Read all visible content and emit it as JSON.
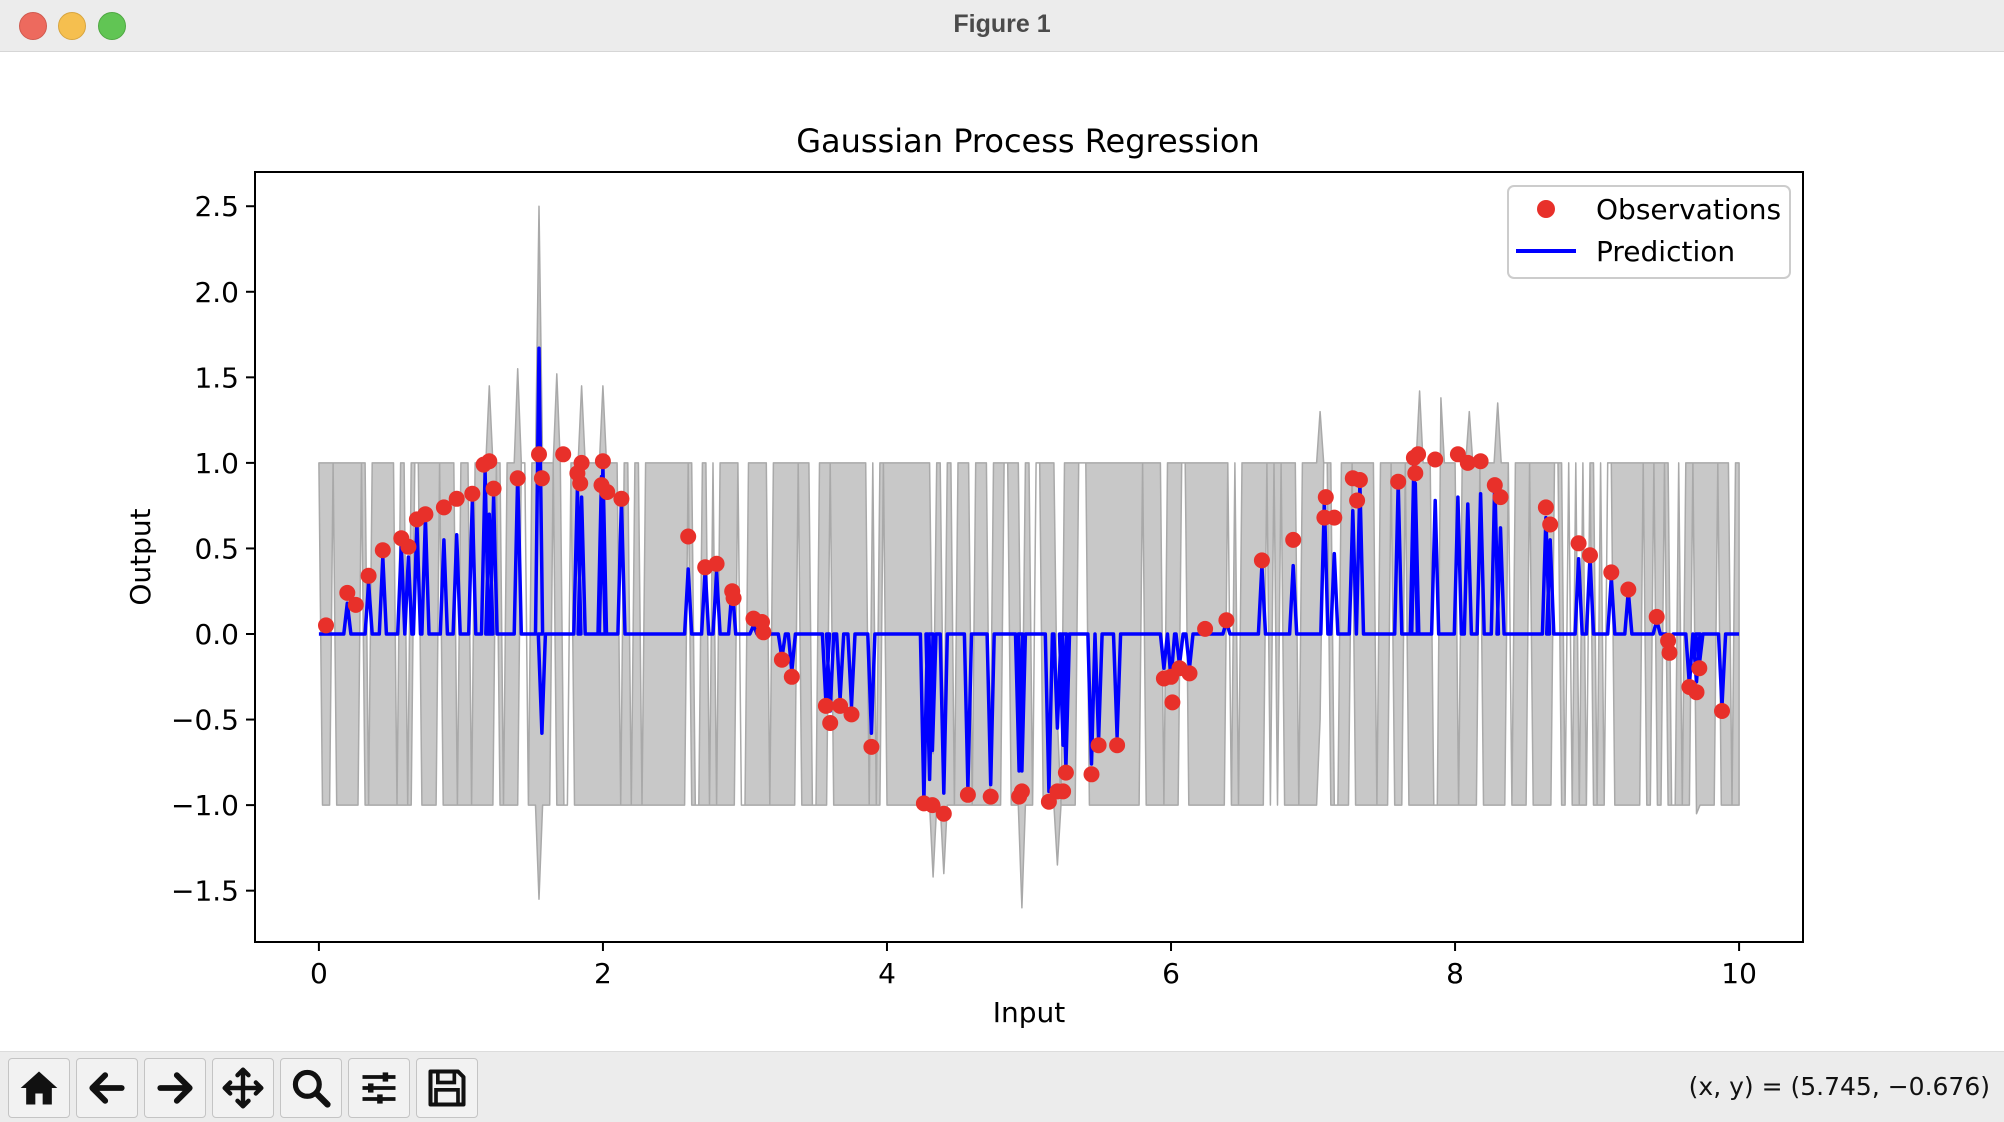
{
  "window": {
    "title": "Figure 1"
  },
  "toolbar": {
    "buttons": [
      {
        "name": "home-button",
        "icon": "home-icon"
      },
      {
        "name": "back-button",
        "icon": "arrow-left-icon"
      },
      {
        "name": "forward-button",
        "icon": "arrow-right-icon"
      },
      {
        "name": "pan-button",
        "icon": "move-icon"
      },
      {
        "name": "zoom-button",
        "icon": "magnifier-icon"
      },
      {
        "name": "configure-subplots-button",
        "icon": "sliders-icon"
      },
      {
        "name": "save-button",
        "icon": "floppy-disk-icon"
      }
    ],
    "coords": "(x, y) = (5.745, −0.676)"
  },
  "chart_data": {
    "type": "line",
    "title": "Gaussian Process Regression",
    "xlabel": "Input",
    "ylabel": "Output",
    "xlim": [
      -0.45,
      10.45
    ],
    "ylim": [
      -1.8,
      2.7
    ],
    "xticks": [
      0,
      2,
      4,
      6,
      8,
      10
    ],
    "xtick_labels": [
      "0",
      "2",
      "4",
      "6",
      "8",
      "10"
    ],
    "yticks": [
      -1.5,
      -1.0,
      -0.5,
      0.0,
      0.5,
      1.0,
      1.5,
      2.0,
      2.5
    ],
    "ytick_labels": [
      "−1.5",
      "−1.0",
      "−0.5",
      "0.0",
      "0.5",
      "1.0",
      "1.5",
      "2.0",
      "2.5"
    ],
    "grid": false,
    "legend": {
      "placement": "top-right",
      "entries": [
        "Observations",
        "Prediction"
      ]
    },
    "colors": {
      "observations": "#e8302a",
      "prediction": "#0000ff",
      "band": "#c8c8c8",
      "band_edge": "#a9a9a9"
    },
    "observations": {
      "x": [
        0.05,
        0.2,
        0.26,
        0.35,
        0.45,
        0.58,
        0.63,
        0.69,
        0.75,
        0.88,
        0.97,
        1.08,
        1.16,
        1.2,
        1.23,
        1.4,
        1.55,
        1.57,
        1.72,
        1.82,
        1.84,
        1.85,
        1.99,
        2.0,
        2.03,
        2.13,
        2.6,
        2.72,
        2.8,
        2.91,
        2.92,
        3.06,
        3.12,
        3.13,
        3.26,
        3.33,
        3.57,
        3.6,
        3.67,
        3.75,
        3.89,
        4.26,
        4.32,
        4.4,
        4.57,
        4.73,
        4.93,
        4.95,
        5.14,
        5.2,
        5.24,
        5.26,
        5.44,
        5.49,
        5.62,
        5.95,
        6.0,
        6.01,
        6.06,
        6.13,
        6.24,
        6.39,
        6.64,
        6.86,
        7.08,
        7.09,
        7.15,
        7.28,
        7.31,
        7.33,
        7.6,
        7.71,
        7.72,
        7.74,
        7.86,
        8.02,
        8.09,
        8.18,
        8.28,
        8.32,
        8.64,
        8.67,
        8.87,
        8.95,
        9.1,
        9.22,
        9.42,
        9.5,
        9.51,
        9.65,
        9.7,
        9.72,
        9.88
      ],
      "y": [
        0.05,
        0.24,
        0.17,
        0.34,
        0.49,
        0.56,
        0.51,
        0.67,
        0.7,
        0.74,
        0.79,
        0.82,
        0.99,
        1.01,
        0.85,
        0.91,
        1.05,
        0.91,
        1.05,
        0.94,
        0.88,
        1.0,
        0.87,
        1.01,
        0.83,
        0.79,
        0.57,
        0.39,
        0.41,
        0.25,
        0.21,
        0.09,
        0.07,
        0.01,
        -0.15,
        -0.25,
        -0.42,
        -0.52,
        -0.42,
        -0.47,
        -0.66,
        -0.99,
        -1.0,
        -1.05,
        -0.94,
        -0.95,
        -0.95,
        -0.92,
        -0.98,
        -0.92,
        -0.92,
        -0.81,
        -0.82,
        -0.65,
        -0.65,
        -0.26,
        -0.25,
        -0.4,
        -0.2,
        -0.23,
        0.03,
        0.08,
        0.43,
        0.55,
        0.68,
        0.8,
        0.68,
        0.91,
        0.78,
        0.9,
        0.89,
        1.03,
        0.94,
        1.05,
        1.02,
        1.05,
        1.0,
        1.01,
        0.87,
        0.8,
        0.74,
        0.64,
        0.53,
        0.46,
        0.36,
        0.26,
        0.1,
        -0.04,
        -0.11,
        -0.31,
        -0.34,
        -0.2,
        -0.45
      ]
    },
    "prediction": {
      "baseline": 0.0,
      "spikes": [
        {
          "x": 0.2,
          "y": 0.18
        },
        {
          "x": 0.35,
          "y": 0.3
        },
        {
          "x": 0.45,
          "y": 0.45
        },
        {
          "x": 0.58,
          "y": 0.52
        },
        {
          "x": 0.63,
          "y": 0.45
        },
        {
          "x": 0.69,
          "y": 0.65
        },
        {
          "x": 0.75,
          "y": 0.68
        },
        {
          "x": 0.88,
          "y": 0.55
        },
        {
          "x": 0.97,
          "y": 0.58
        },
        {
          "x": 1.08,
          "y": 0.78
        },
        {
          "x": 1.17,
          "y": 0.95
        },
        {
          "x": 1.2,
          "y": 0.7
        },
        {
          "x": 1.23,
          "y": 0.8
        },
        {
          "x": 1.4,
          "y": 0.93
        },
        {
          "x": 1.55,
          "y": 1.67
        },
        {
          "x": 1.57,
          "y": -0.58
        },
        {
          "x": 1.82,
          "y": 0.85
        },
        {
          "x": 1.85,
          "y": 0.8
        },
        {
          "x": 1.99,
          "y": 0.92
        },
        {
          "x": 2.0,
          "y": 0.98
        },
        {
          "x": 2.13,
          "y": 0.78
        },
        {
          "x": 2.6,
          "y": 0.38
        },
        {
          "x": 2.72,
          "y": 0.38
        },
        {
          "x": 2.8,
          "y": 0.36
        },
        {
          "x": 2.91,
          "y": 0.28
        },
        {
          "x": 3.06,
          "y": 0.05
        },
        {
          "x": 3.12,
          "y": 0.05
        },
        {
          "x": 3.26,
          "y": -0.14
        },
        {
          "x": 3.33,
          "y": -0.22
        },
        {
          "x": 3.57,
          "y": -0.4
        },
        {
          "x": 3.6,
          "y": -0.45
        },
        {
          "x": 3.67,
          "y": -0.38
        },
        {
          "x": 3.75,
          "y": -0.42
        },
        {
          "x": 3.89,
          "y": -0.58
        },
        {
          "x": 4.26,
          "y": -0.97
        },
        {
          "x": 4.3,
          "y": -0.85
        },
        {
          "x": 4.32,
          "y": -0.68
        },
        {
          "x": 4.4,
          "y": -0.93
        },
        {
          "x": 4.57,
          "y": -0.9
        },
        {
          "x": 4.73,
          "y": -0.88
        },
        {
          "x": 4.93,
          "y": -0.8
        },
        {
          "x": 4.95,
          "y": -0.8
        },
        {
          "x": 5.14,
          "y": -0.92
        },
        {
          "x": 5.2,
          "y": -0.55
        },
        {
          "x": 5.24,
          "y": -0.65
        },
        {
          "x": 5.26,
          "y": -0.78
        },
        {
          "x": 5.44,
          "y": -0.76
        },
        {
          "x": 5.49,
          "y": -0.62
        },
        {
          "x": 5.62,
          "y": -0.6
        },
        {
          "x": 5.95,
          "y": -0.2
        },
        {
          "x": 6.0,
          "y": -0.27
        },
        {
          "x": 6.06,
          "y": -0.18
        },
        {
          "x": 6.13,
          "y": -0.2
        },
        {
          "x": 6.39,
          "y": 0.07
        },
        {
          "x": 6.64,
          "y": 0.4
        },
        {
          "x": 6.86,
          "y": 0.4
        },
        {
          "x": 7.08,
          "y": 0.78
        },
        {
          "x": 7.15,
          "y": 0.47
        },
        {
          "x": 7.28,
          "y": 0.72
        },
        {
          "x": 7.33,
          "y": 0.88
        },
        {
          "x": 7.6,
          "y": 0.88
        },
        {
          "x": 7.71,
          "y": 1.0
        },
        {
          "x": 7.72,
          "y": 0.88
        },
        {
          "x": 7.86,
          "y": 0.78
        },
        {
          "x": 8.02,
          "y": 0.8
        },
        {
          "x": 8.09,
          "y": 0.76
        },
        {
          "x": 8.18,
          "y": 0.82
        },
        {
          "x": 8.28,
          "y": 0.9
        },
        {
          "x": 8.32,
          "y": 0.62
        },
        {
          "x": 8.64,
          "y": 0.68
        },
        {
          "x": 8.67,
          "y": 0.55
        },
        {
          "x": 8.87,
          "y": 0.44
        },
        {
          "x": 8.95,
          "y": 0.45
        },
        {
          "x": 9.1,
          "y": 0.33
        },
        {
          "x": 9.22,
          "y": 0.25
        },
        {
          "x": 9.42,
          "y": 0.08
        },
        {
          "x": 9.51,
          "y": -0.08
        },
        {
          "x": 9.65,
          "y": -0.3
        },
        {
          "x": 9.7,
          "y": -0.28
        },
        {
          "x": 9.72,
          "y": -0.18
        },
        {
          "x": 9.88,
          "y": -0.42
        }
      ]
    },
    "uncertainty": {
      "bounds": [
        -1.0,
        1.0
      ],
      "range_x": [
        0.0,
        10.0
      ],
      "peaks": [
        {
          "x": 1.55,
          "upper": 2.5,
          "lower": -1.55
        },
        {
          "x": 1.2,
          "upper": 1.45,
          "lower": -0.6
        },
        {
          "x": 1.4,
          "upper": 1.55,
          "lower": -0.7
        },
        {
          "x": 1.68,
          "upper": 1.52,
          "lower": -0.9
        },
        {
          "x": 1.85,
          "upper": 1.45,
          "lower": -0.7
        },
        {
          "x": 2.0,
          "upper": 1.45,
          "lower": -0.75
        },
        {
          "x": 4.32,
          "upper": -0.7,
          "lower": -1.42
        },
        {
          "x": 4.4,
          "upper": -0.75,
          "lower": -1.4
        },
        {
          "x": 4.95,
          "upper": -0.8,
          "lower": -1.6
        },
        {
          "x": 5.2,
          "upper": -0.5,
          "lower": -1.35
        },
        {
          "x": 7.05,
          "upper": 1.3,
          "lower": -0.5
        },
        {
          "x": 7.75,
          "upper": 1.42,
          "lower": -0.6
        },
        {
          "x": 7.9,
          "upper": 1.38,
          "lower": -0.5
        },
        {
          "x": 8.1,
          "upper": 1.3,
          "lower": -0.5
        },
        {
          "x": 8.3,
          "upper": 1.35,
          "lower": -0.55
        },
        {
          "x": 9.7,
          "upper": 0.6,
          "lower": -1.05
        }
      ]
    }
  }
}
